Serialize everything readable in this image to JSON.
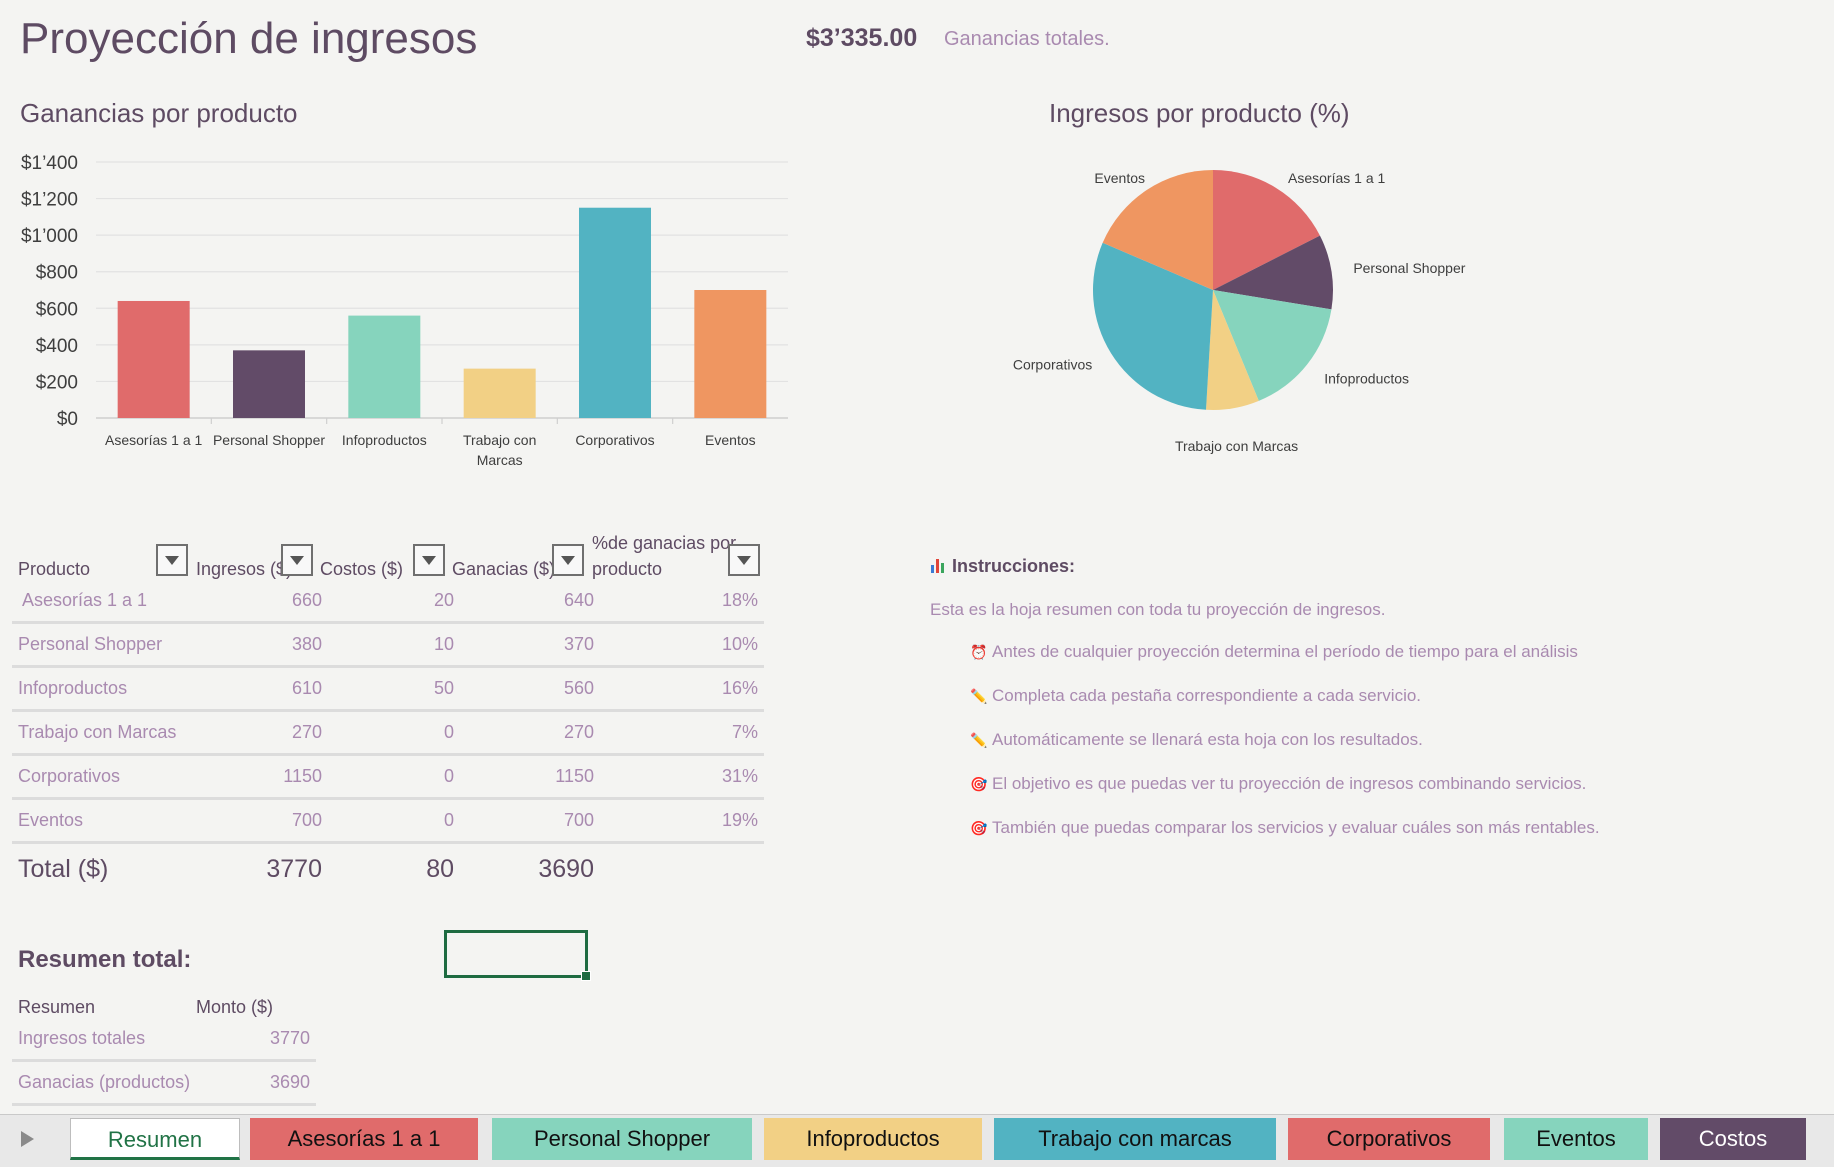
{
  "header": {
    "title": "Proyección de ingresos",
    "total_amount": "$3’335.00",
    "total_label": "Ganancias totales."
  },
  "chart_data": [
    {
      "type": "bar",
      "title": "Ganancias por producto",
      "categories": [
        "Asesorías 1 a 1",
        "Personal Shopper",
        "Infoproductos",
        "Trabajo con Marcas",
        "Corporativos",
        "Eventos"
      ],
      "category_lines": [
        [
          "Asesorías 1 a 1"
        ],
        [
          "Personal Shopper"
        ],
        [
          "Infoproductos"
        ],
        [
          "Trabajo con",
          "Marcas"
        ],
        [
          "Corporativos"
        ],
        [
          "Eventos"
        ]
      ],
      "values": [
        640,
        370,
        560,
        270,
        1150,
        700
      ],
      "colors": [
        "#e06b6b",
        "#624b68",
        "#86d4bd",
        "#f2d085",
        "#52b3c2",
        "#ef9661"
      ],
      "ylim": [
        0,
        1400
      ],
      "yticks": [
        0,
        200,
        400,
        600,
        800,
        1000,
        1200,
        1400
      ],
      "ytick_labels": [
        "$0",
        "$200",
        "$400",
        "$600",
        "$800",
        "$1’000",
        "$1’200",
        "$1’400"
      ],
      "grid": true,
      "xlabel": "",
      "ylabel": ""
    },
    {
      "type": "pie",
      "title": "Ingresos por producto (%)",
      "labels": [
        "Asesorías 1 a 1",
        "Personal Shopper",
        "Infoproductos",
        "Trabajo con Marcas",
        "Corporativos",
        "Eventos"
      ],
      "values": [
        660,
        380,
        610,
        270,
        1150,
        700
      ],
      "colors": [
        "#e06b6b",
        "#624b68",
        "#86d4bd",
        "#f2d085",
        "#52b3c2",
        "#ef9661"
      ]
    }
  ],
  "products_table": {
    "headers": [
      "Producto",
      "Ingresos ($)",
      "Costos ($)",
      "Ganacias ($)",
      "%de ganacias por",
      "producto"
    ],
    "rows": [
      {
        "producto": "Asesorías 1 a 1",
        "ingresos": "660",
        "costos": "20",
        "ganancias": "640",
        "pct": "18%"
      },
      {
        "producto": "Personal Shopper",
        "ingresos": "380",
        "costos": "10",
        "ganancias": "370",
        "pct": "10%"
      },
      {
        "producto": "Infoproductos",
        "ingresos": "610",
        "costos": "50",
        "ganancias": "560",
        "pct": "16%"
      },
      {
        "producto": "Trabajo con Marcas",
        "ingresos": "270",
        "costos": "0",
        "ganancias": "270",
        "pct": "7%"
      },
      {
        "producto": "Corporativos",
        "ingresos": "1150",
        "costos": "0",
        "ganancias": "1150",
        "pct": "31%"
      },
      {
        "producto": "Eventos",
        "ingresos": "700",
        "costos": "0",
        "ganancias": "700",
        "pct": "19%"
      }
    ],
    "total": {
      "label": "Total ($)",
      "ingresos": "3770",
      "costos": "80",
      "ganancias": "3690"
    }
  },
  "instructions": {
    "title": "Instrucciones:",
    "intro": "Esta es la hoja resumen con toda tu proyección de ingresos.",
    "items": [
      {
        "icon": "⏰",
        "text": "Antes de cualquier proyección determina el período de tiempo para el análisis"
      },
      {
        "icon": "✏️",
        "text": "Completa cada pestaña correspondiente a cada servicio."
      },
      {
        "icon": "✏️",
        "text": "Automáticamente se llenará esta hoja con los resultados."
      },
      {
        "icon": "🎯",
        "text": "El objetivo es que puedas ver tu proyección de ingresos combinando servicios."
      },
      {
        "icon": "🎯",
        "text": "También que puedas comparar los servicios y evaluar cuáles son más rentables."
      }
    ]
  },
  "summary": {
    "title": "Resumen total:",
    "headers": [
      "Resumen",
      "Monto ($)"
    ],
    "rows": [
      {
        "label": "Ingresos totales",
        "value": "3770"
      },
      {
        "label": "Ganacias (productos)",
        "value": "3690"
      }
    ]
  },
  "tabs": [
    {
      "label": "Resumen",
      "color": "#ffffff",
      "active": true
    },
    {
      "label": "Asesorías 1 a 1",
      "color": "#e06b6b"
    },
    {
      "label": "Personal Shopper",
      "color": "#86d4bd"
    },
    {
      "label": "Infoproductos",
      "color": "#f2d085"
    },
    {
      "label": "Trabajo con marcas",
      "color": "#52b3c2"
    },
    {
      "label": "Corporativos",
      "color": "#e06b6b"
    },
    {
      "label": "Eventos",
      "color": "#86d4bd"
    },
    {
      "label": "Costos",
      "color": "#624b68"
    }
  ],
  "icons": {
    "instructions": "bar-chart-icon",
    "tab_nav": "play-icon"
  }
}
